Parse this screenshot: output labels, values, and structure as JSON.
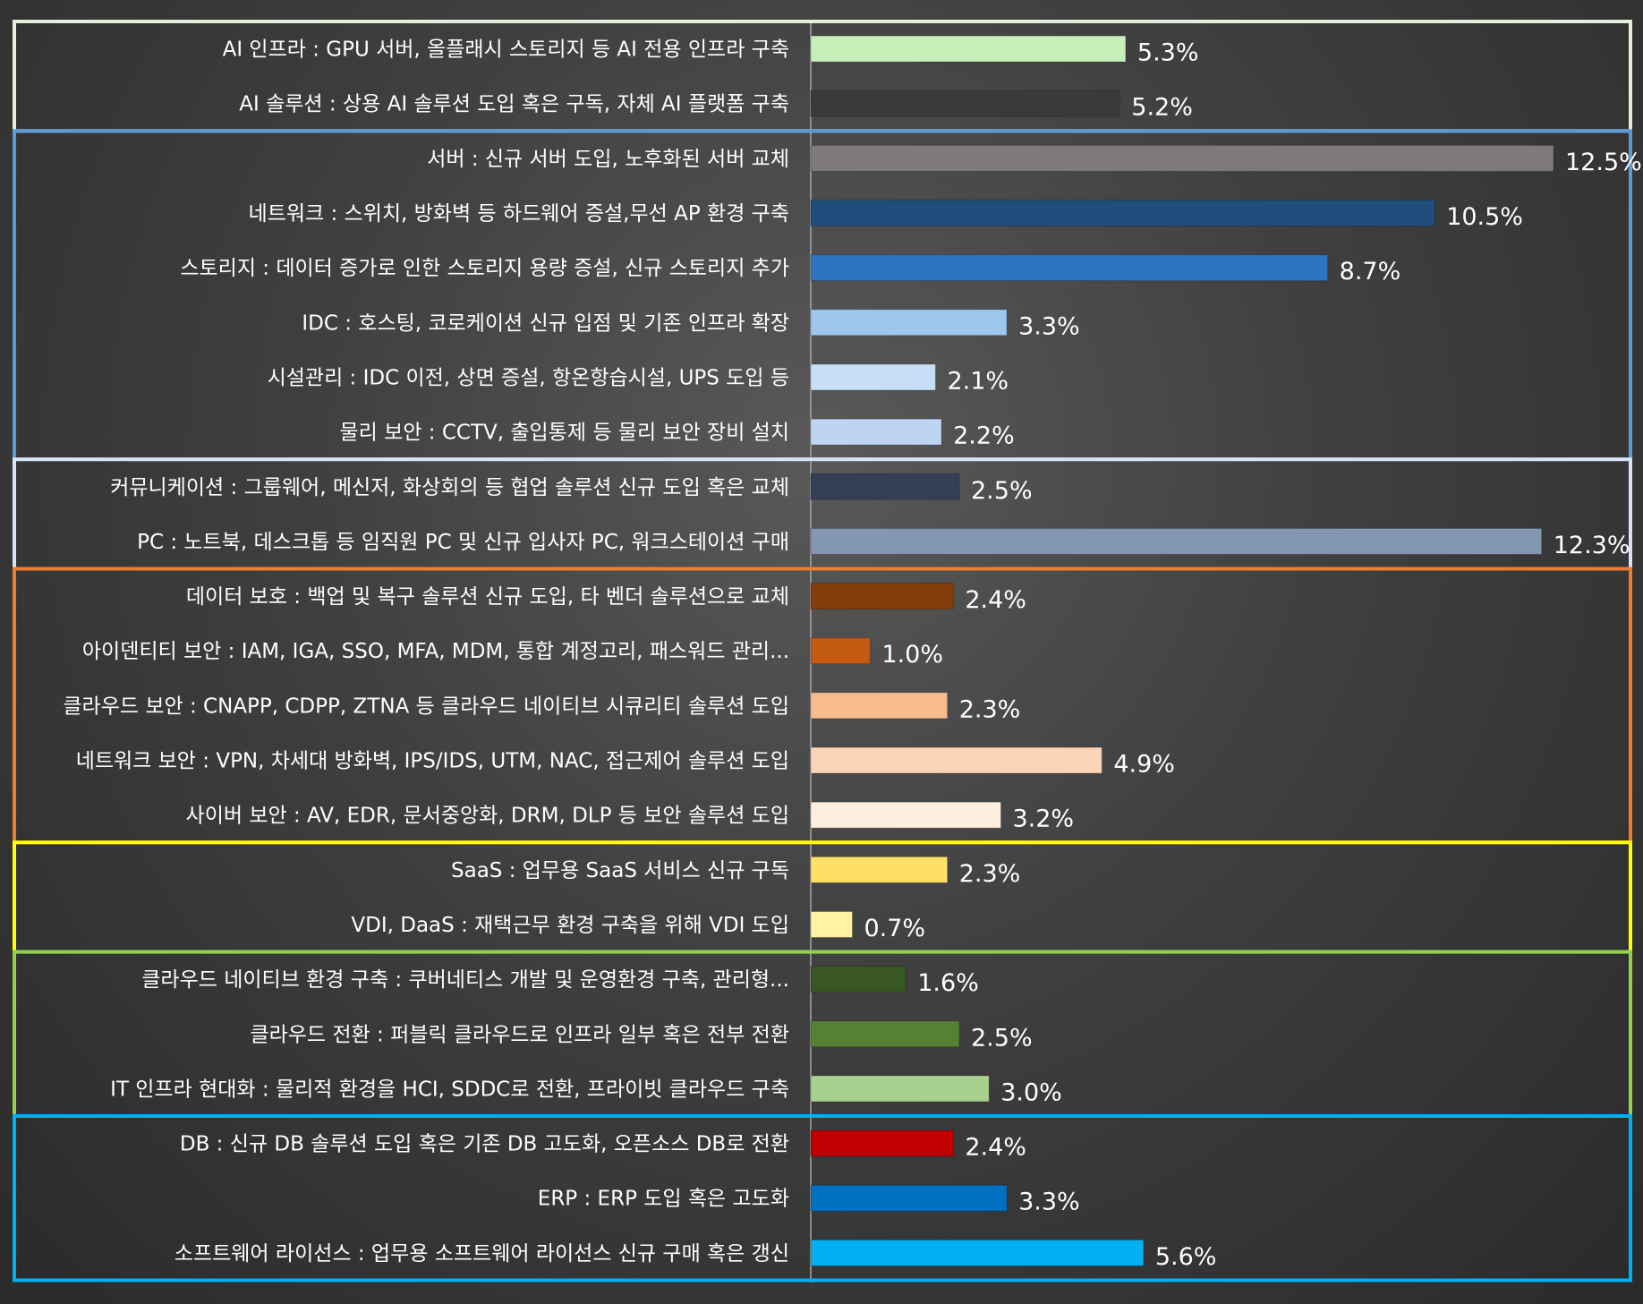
{
  "chart_data": {
    "type": "bar",
    "orientation": "horizontal",
    "xlim": [
      0,
      12.5
    ],
    "categories": [
      "AI 인프라 : GPU 서버, 올플래시 스토리지 등 AI 전용 인프라 구축",
      "AI 솔루션 : 상용 AI 솔루션 도입 혹은 구독, 자체 AI 플랫폼 구축",
      "서버 : 신규 서버 도입, 노후화된 서버 교체",
      "네트워크 : 스위치, 방화벽 등 하드웨어 증설,무선 AP 환경 구축",
      "스토리지 : 데이터 증가로 인한 스토리지 용량 증설, 신규 스토리지 추가",
      "IDC : 호스팅, 코로케이션 신규 입점 및 기존 인프라 확장",
      "시설관리 : IDC 이전, 상면 증설, 항온항습시설, UPS 도입 등",
      "물리 보안 : CCTV, 출입통제 등 물리 보안 장비 설치",
      "커뮤니케이션 : 그룹웨어, 메신저, 화상회의 등 협업 솔루션 신규 도입 혹은 교체",
      "PC : 노트북, 데스크톱 등 임직원 PC 및 신규 입사자 PC, 워크스테이션 구매",
      "데이터 보호 : 백업 및 복구 솔루션 신규 도입, 타 벤더 솔루션으로 교체",
      "아이덴티티 보안 : IAM, IGA, SSO, MFA, MDM, 통합 계정고리, 패스워드 관리...",
      "클라우드 보안 : CNAPP, CDPP, ZTNA 등 클라우드 네이티브 시큐리티 솔루션 도입",
      "네트워크 보안 : VPN, 차세대 방화벽, IPS/IDS, UTM, NAC, 접근제어 솔루션 도입",
      "사이버 보안 : AV, EDR, 문서중앙화, DRM, DLP 등 보안 솔루션 도입",
      "SaaS : 업무용 SaaS 서비스 신규 구독",
      "VDI, DaaS : 재택근무 환경 구축을 위해 VDI 도입",
      "클라우드 네이티브 환경 구축 : 쿠버네티스 개발 및 운영환경 구축, 관리형...",
      "클라우드 전환 : 퍼블릭 클라우드로 인프라 일부 혹은 전부 전환",
      "IT 인프라 현대화 : 물리적 환경을 HCI, SDDC로 전환, 프라이빗 클라우드 구축",
      "DB : 신규 DB 솔루션 도입 혹은 기존 DB 고도화, 오픈소스 DB로 전환",
      "ERP : ERP 도입 혹은 고도화",
      "소프트웨어 라이선스 : 업무용 소프트웨어 라이선스 신규 구매 혹은 갱신"
    ],
    "values": [
      5.3,
      5.2,
      12.5,
      10.5,
      8.7,
      3.3,
      2.1,
      2.2,
      2.5,
      12.3,
      2.4,
      1.0,
      2.3,
      4.9,
      3.2,
      2.3,
      0.7,
      1.6,
      2.5,
      3.0,
      2.4,
      3.3,
      5.6
    ],
    "value_labels": [
      "5.3%",
      "5.2%",
      "12.5%",
      "10.5%",
      "8.7%",
      "3.3%",
      "2.1%",
      "2.2%",
      "2.5%",
      "12.3%",
      "2.4%",
      "1.0%",
      "2.3%",
      "4.9%",
      "3.2%",
      "2.3%",
      "0.7%",
      "1.6%",
      "2.5%",
      "3.0%",
      "2.4%",
      "3.3%",
      "5.6%"
    ],
    "bar_colors": [
      "#c6efb9",
      "#3a3a3a",
      "#7f7a7a",
      "#1f4e7d",
      "#2e75c0",
      "#9dc7ed",
      "#c7e0f8",
      "#bdd4f3",
      "#323f56",
      "#8497b0",
      "#843c0c",
      "#c55a11",
      "#f8bc8f",
      "#fbd3b6",
      "#fdeedf",
      "#ffe066",
      "#fff2a0",
      "#385723",
      "#548235",
      "#a9d18e",
      "#c00000",
      "#0070c0",
      "#00b0f0"
    ],
    "groups": [
      {
        "start": 0,
        "end": 1,
        "color": "#e2f0d9"
      },
      {
        "start": 2,
        "end": 7,
        "color": "#5b9bd5"
      },
      {
        "start": 8,
        "end": 9,
        "color": "#dae3f3"
      },
      {
        "start": 10,
        "end": 14,
        "color": "#ed7d31"
      },
      {
        "start": 15,
        "end": 16,
        "color": "#ffff00"
      },
      {
        "start": 17,
        "end": 19,
        "color": "#92d050"
      },
      {
        "start": 20,
        "end": 22,
        "color": "#00b0f0"
      }
    ]
  }
}
